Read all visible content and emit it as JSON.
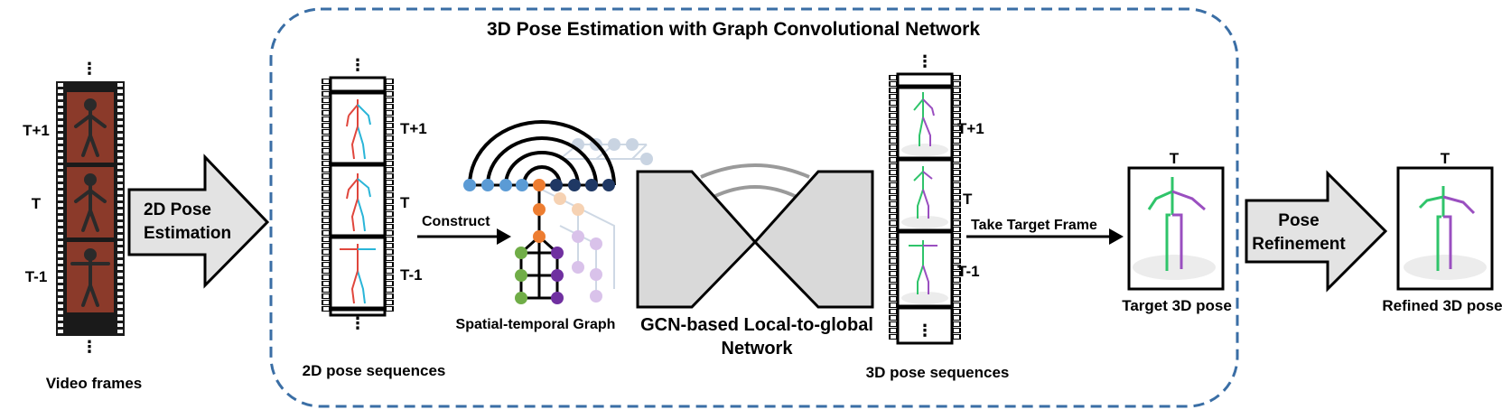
{
  "title": "3D Pose Estimation with Graph Convolutional Network",
  "video_frames": {
    "caption": "Video frames",
    "labels": [
      "T+1",
      "T",
      "T-1"
    ],
    "dots": "⋮"
  },
  "step_2d": {
    "line1": "2D Pose",
    "line2": "Estimation"
  },
  "pose2d": {
    "caption": "2D pose sequences",
    "labels": [
      "T+1",
      "T",
      "T-1"
    ],
    "dots": "⋮"
  },
  "construct_label": "Construct",
  "graph_caption": "Spatial-temporal Graph",
  "gcn": {
    "line1": "GCN-based Local-to-global",
    "line2": "Network"
  },
  "pose3d": {
    "caption": "3D pose sequences",
    "labels": [
      "T+1",
      "T",
      "T-1"
    ],
    "dots": "⋮"
  },
  "take_target_label": "Take Target Frame",
  "target": {
    "top": "T",
    "caption": "Target 3D pose"
  },
  "refine": {
    "line1": "Pose",
    "line2": "Refinement"
  },
  "refined": {
    "top": "T",
    "caption": "Refined 3D pose"
  },
  "colors": {
    "dashed_border": "#3a6ea5",
    "arrow_fill": "#e3e3e3",
    "gcn_fill": "#d9d9d9",
    "pose_red": "#e0463c",
    "pose_cyan": "#2ab5d8",
    "pose_green": "#2fc46a",
    "pose_purple": "#9a4fc0",
    "node_blue_light": "#5b9bd5",
    "node_blue_dark": "#1f3864",
    "node_orange": "#ed7d31",
    "node_green": "#70ad47",
    "node_purple": "#7030a0",
    "video_bg": "#8b3a2a"
  }
}
